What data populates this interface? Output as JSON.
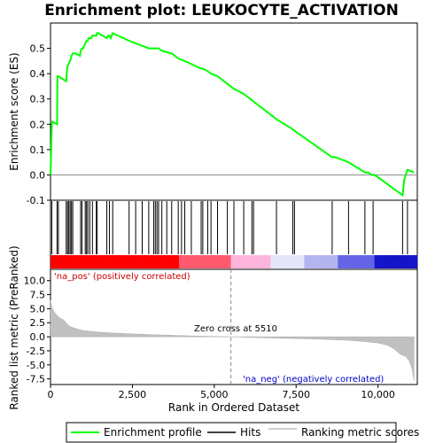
{
  "chart_data": [
    {
      "panel": "enrichment",
      "type": "line",
      "title": "Enrichment plot: LEUKOCYTE_ACTIVATION",
      "ylabel": "Enrichment score (ES)",
      "xlim": [
        0,
        11200
      ],
      "ylim": [
        -0.1,
        0.6
      ],
      "yticks": [
        "-0.1",
        "0.0",
        "0.1",
        "0.2",
        "0.3",
        "0.4",
        "0.5"
      ],
      "ytick_values": [
        -0.1,
        0.0,
        0.1,
        0.2,
        0.3,
        0.4,
        0.5
      ],
      "grid": false,
      "series": [
        {
          "name": "Enrichment profile",
          "color": "#00ff00",
          "x": [
            0,
            40,
            60,
            200,
            210,
            240,
            480,
            500,
            520,
            560,
            600,
            640,
            680,
            760,
            900,
            920,
            960,
            1000,
            1060,
            1100,
            1140,
            1160,
            1200,
            1240,
            1280,
            1320,
            1400,
            1420,
            1460,
            1720,
            1760,
            1800,
            1840,
            1900,
            2400,
            2600,
            2800,
            3000,
            3200,
            3300,
            3400,
            3700,
            3900,
            4100,
            4600,
            4650,
            4800,
            4900,
            5100,
            5400,
            5600,
            5900,
            6100,
            6200,
            6900,
            7400,
            7500,
            8600,
            8700,
            9100,
            9600,
            9700,
            9800,
            9850,
            9900,
            10750,
            10800,
            10900,
            11100
          ],
          "y": [
            0.0,
            0.2,
            0.21,
            0.2,
            0.39,
            0.39,
            0.37,
            0.41,
            0.43,
            0.44,
            0.45,
            0.47,
            0.48,
            0.48,
            0.47,
            0.49,
            0.5,
            0.5,
            0.52,
            0.53,
            0.53,
            0.54,
            0.54,
            0.54,
            0.55,
            0.55,
            0.55,
            0.56,
            0.56,
            0.54,
            0.55,
            0.55,
            0.54,
            0.56,
            0.53,
            0.52,
            0.51,
            0.5,
            0.5,
            0.5,
            0.49,
            0.48,
            0.46,
            0.45,
            0.42,
            0.42,
            0.41,
            0.4,
            0.39,
            0.36,
            0.34,
            0.32,
            0.3,
            0.29,
            0.22,
            0.18,
            0.17,
            0.07,
            0.07,
            0.05,
            0.01,
            0.01,
            0.0,
            0.0,
            0.0,
            -0.08,
            -0.02,
            0.02,
            0.01
          ]
        }
      ]
    },
    {
      "panel": "hits",
      "type": "scatter",
      "xlim": [
        0,
        11200
      ],
      "series": [
        {
          "name": "Hits",
          "color": "#000000",
          "x": [
            40,
            200,
            240,
            480,
            520,
            560,
            600,
            640,
            680,
            920,
            960,
            1060,
            1100,
            1140,
            1200,
            1280,
            1400,
            1420,
            1720,
            1800,
            1900,
            2400,
            2600,
            2800,
            3000,
            3150,
            3200,
            3250,
            3300,
            3400,
            3550,
            3700,
            3900,
            4000,
            4100,
            4300,
            4600,
            4650,
            4800,
            4900,
            5100,
            5400,
            5600,
            5900,
            6150,
            6200,
            6900,
            7400,
            7450,
            8600,
            9100,
            9600,
            9850,
            10750,
            10900
          ]
        }
      ]
    },
    {
      "panel": "ranked-metric",
      "type": "area",
      "xlabel": "Rank in Ordered Dataset",
      "ylabel": "Ranked list metric (PreRanked)",
      "xlim": [
        0,
        11200
      ],
      "ylim": [
        -8.5,
        12
      ],
      "yticks": [
        "-7.5",
        "-5.0",
        "-2.5",
        "0.0",
        "2.5",
        "5.0",
        "7.5",
        "10.0"
      ],
      "ytick_values": [
        -7.5,
        -5.0,
        -2.5,
        0.0,
        2.5,
        5.0,
        7.5,
        10.0
      ],
      "xticks": [
        "0",
        "2,500",
        "5,000",
        "7,500",
        "10,000"
      ],
      "xtick_values": [
        0,
        2500,
        5000,
        7500,
        10000
      ],
      "zero_cross": 5510,
      "zero_cross_label": "Zero cross at 5510",
      "pos_label": "'na_pos' (positively correlated)",
      "neg_label": "'na_neg' (negatively correlated)",
      "series": [
        {
          "name": "Ranking metric scores",
          "color": "#c0c0c0",
          "x": [
            0,
            30,
            100,
            200,
            300,
            400,
            500,
            600,
            800,
            1000,
            1500,
            2000,
            2500,
            3000,
            3500,
            4000,
            4500,
            5000,
            5510,
            6000,
            7000,
            8000,
            9000,
            9500,
            10000,
            10300,
            10500,
            10650,
            10750,
            10850,
            10950,
            11000,
            11050,
            11100
          ],
          "y": [
            6.5,
            5.5,
            4.5,
            3.8,
            3.3,
            3.0,
            2.3,
            1.8,
            1.4,
            1.1,
            0.8,
            0.65,
            0.5,
            0.4,
            0.3,
            0.2,
            0.12,
            0.05,
            0.0,
            -0.1,
            -0.25,
            -0.4,
            -0.6,
            -0.8,
            -1.1,
            -1.5,
            -2.2,
            -3.0,
            -3.3,
            -3.5,
            -4.3,
            -5.0,
            -6.0,
            -7.8
          ]
        }
      ],
      "heatmap_colors": [
        "#ff0000",
        "#ff5a6e",
        "#ffb4dc",
        "#e6e6fa",
        "#b4b4f0",
        "#6464e6",
        "#1414c8"
      ]
    }
  ],
  "legend": {
    "items": [
      {
        "label": "Enrichment profile",
        "color": "#00ff00"
      },
      {
        "label": "Hits",
        "color": "#000000"
      },
      {
        "label": "Ranking metric scores",
        "color": "#c0c0c0"
      }
    ]
  }
}
